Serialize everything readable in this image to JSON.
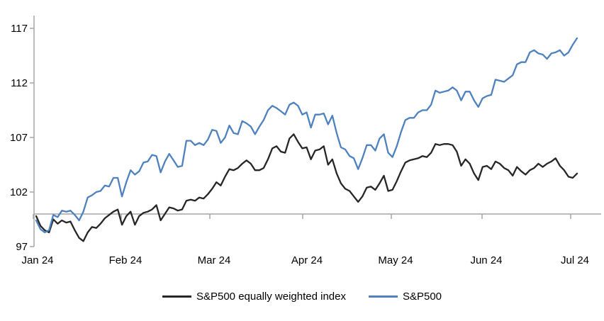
{
  "chart_data": {
    "type": "line",
    "title": "",
    "x_tick_labels": [
      "Jan 24",
      "Feb 24",
      "Mar 24",
      "Apr 24",
      "May 24",
      "Jun 24",
      "Jul 24"
    ],
    "y_ticks": [
      97,
      102,
      107,
      112,
      117
    ],
    "ylim": [
      97,
      117
    ],
    "baseline_value": 100,
    "grid": false,
    "legend_position": "bottom",
    "axis_color": "#a6a6a6",
    "text_color": "#000000",
    "series": [
      {
        "name": "S&P500 equally weighted index",
        "color": "#262626",
        "values": [
          99.8,
          98.9,
          98.5,
          98.3,
          99.5,
          99.1,
          99.4,
          99.2,
          99.3,
          98.5,
          97.8,
          97.5,
          98.3,
          98.8,
          98.7,
          99.1,
          99.6,
          99.9,
          100.2,
          100.4,
          99.0,
          99.8,
          100.2,
          99.0,
          99.8,
          100.1,
          100.2,
          100.4,
          100.8,
          99.4,
          100.0,
          100.6,
          100.5,
          100.3,
          100.4,
          101.2,
          101.3,
          101.2,
          101.5,
          101.4,
          101.8,
          102.3,
          102.9,
          102.6,
          103.4,
          104.1,
          104.0,
          104.2,
          104.6,
          104.9,
          104.6,
          104.0,
          104.0,
          104.2,
          105.0,
          106.0,
          106.2,
          105.7,
          105.6,
          106.9,
          107.3,
          106.6,
          106.0,
          106.1,
          105.0,
          105.8,
          105.9,
          106.2,
          104.5,
          105.0,
          103.7,
          102.8,
          102.3,
          102.1,
          101.6,
          101.1,
          101.6,
          102.4,
          102.5,
          102.2,
          102.8,
          103.5,
          102.1,
          102.2,
          103.0,
          103.9,
          104.7,
          104.9,
          105.0,
          105.1,
          105.3,
          105.2,
          105.6,
          106.4,
          106.3,
          106.4,
          106.4,
          106.3,
          105.7,
          104.4,
          105.0,
          104.6,
          103.7,
          103.1,
          104.3,
          104.4,
          104.1,
          104.8,
          104.6,
          104.2,
          104.0,
          103.5,
          104.3,
          103.9,
          103.6,
          104.0,
          104.2,
          104.6,
          104.3,
          104.6,
          104.8,
          105.1,
          104.4,
          104.0,
          103.4,
          103.3,
          103.7
        ]
      },
      {
        "name": "S&P500",
        "color": "#4e81bd",
        "values": [
          99.4,
          98.6,
          98.3,
          98.5,
          99.9,
          99.7,
          100.3,
          100.2,
          100.3,
          99.9,
          99.4,
          100.2,
          101.5,
          101.7,
          102.0,
          102.1,
          102.6,
          102.5,
          103.3,
          103.3,
          101.6,
          102.9,
          104.0,
          103.6,
          103.9,
          104.7,
          104.8,
          105.4,
          105.3,
          103.8,
          104.8,
          105.5,
          104.9,
          104.3,
          104.4,
          106.7,
          106.7,
          106.3,
          106.5,
          106.3,
          106.8,
          107.7,
          107.6,
          106.5,
          107.0,
          108.1,
          107.4,
          107.3,
          108.5,
          108.3,
          108.0,
          107.3,
          108.0,
          108.6,
          109.5,
          109.9,
          109.7,
          109.4,
          109.1,
          110.0,
          110.2,
          109.9,
          109.1,
          109.3,
          107.9,
          109.1,
          109.1,
          109.2,
          108.2,
          109.0,
          107.4,
          106.1,
          105.9,
          105.3,
          105.1,
          104.1,
          105.1,
          106.3,
          106.3,
          105.8,
          106.9,
          107.3,
          105.6,
          105.2,
          106.2,
          107.5,
          108.6,
          108.8,
          108.8,
          109.3,
          109.5,
          109.5,
          110.0,
          111.3,
          111.1,
          111.2,
          111.3,
          111.6,
          111.3,
          110.4,
          111.2,
          111.2,
          110.4,
          109.8,
          110.6,
          110.8,
          110.9,
          112.3,
          112.2,
          112.1,
          112.4,
          112.7,
          113.7,
          113.9,
          113.9,
          114.8,
          115.0,
          114.7,
          114.6,
          114.2,
          114.7,
          114.8,
          115.0,
          114.5,
          114.8,
          115.5,
          116.1
        ]
      }
    ]
  },
  "legend": {
    "items": [
      {
        "label": "S&P500 equally weighted index"
      },
      {
        "label": "S&P500"
      }
    ]
  }
}
